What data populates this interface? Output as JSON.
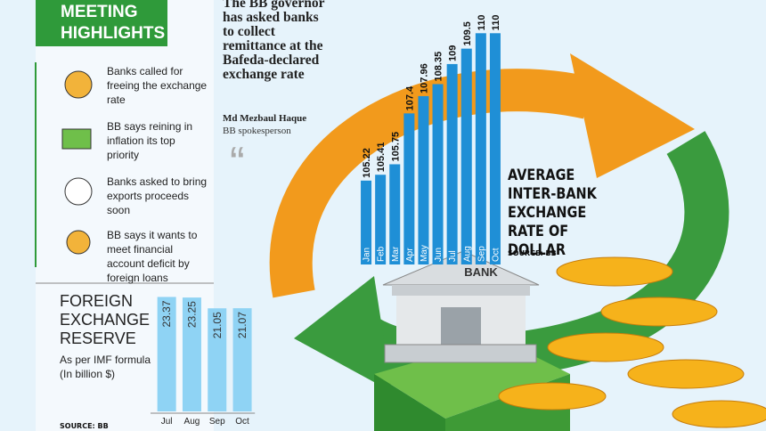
{
  "highlights": {
    "title_lines": [
      "MEETING",
      "HIGHLIGHTS"
    ],
    "items": [
      "Banks called for freeing the exchange rate",
      "BB says reining in inflation its top priority",
      "Banks asked to bring exports proceeds soon",
      "BB says it wants to meet financial account deficit by foreign loans"
    ]
  },
  "quote": {
    "text": "The BB governor has asked banks to collect remittance at the Bafeda-declared exchange rate",
    "name": "Md Mezbaul Haque",
    "role": "BB spokesperson"
  },
  "bank_sign": "BANK",
  "chart_data": [
    {
      "type": "bar",
      "title": "AVERAGE INTER-BANK EXCHANGE RATE OF DOLLAR",
      "source": "SOURCE: BB",
      "categories": [
        "Jan",
        "Feb",
        "Mar",
        "Apr",
        "May",
        "Jun",
        "Jul",
        "Aug",
        "Sep",
        "Oct"
      ],
      "values": [
        105.22,
        105.41,
        105.75,
        107.4,
        107.96,
        108.35,
        109,
        109.5,
        110,
        110
      ],
      "color": "#1f8fd6",
      "ylim": [
        102.5,
        110.5
      ]
    },
    {
      "type": "bar",
      "title": "FOREIGN EXCHANGE RESERVE",
      "subtitle": "As per IMF formula (In billion $)",
      "source": "SOURCE: BB",
      "categories": [
        "Jul",
        "Aug",
        "Sep",
        "Oct"
      ],
      "values": [
        23.37,
        23.25,
        21.05,
        21.07
      ],
      "color": "#8fd3f4",
      "ylim": [
        0,
        24
      ]
    }
  ]
}
